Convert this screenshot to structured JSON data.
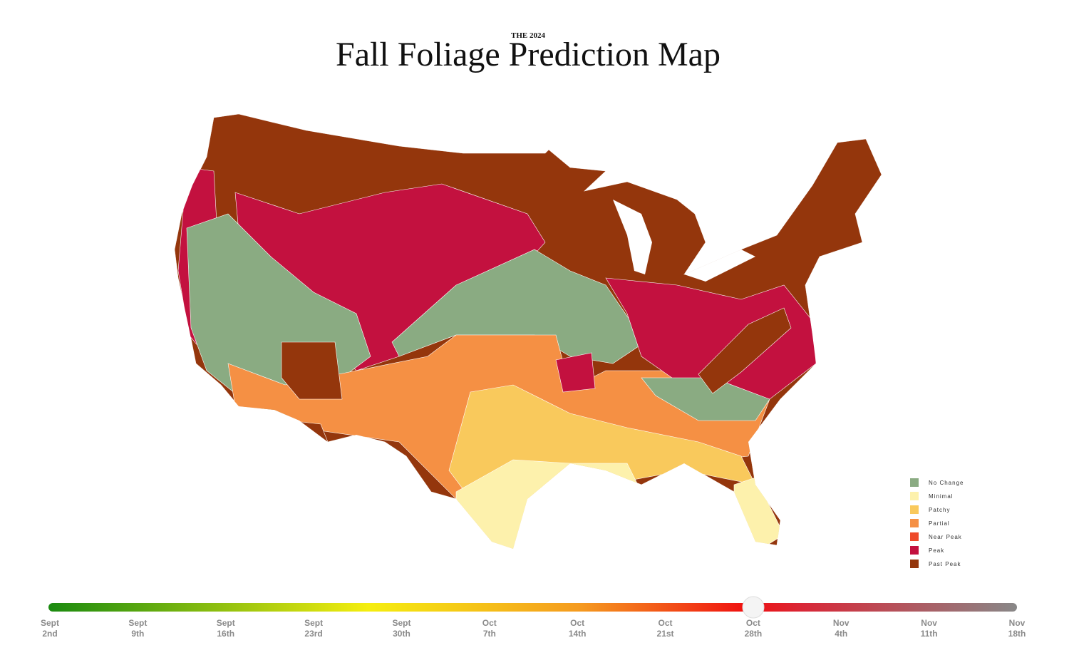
{
  "header": {
    "kicker": "THE 2024",
    "title": "Fall Foliage Prediction Map"
  },
  "legend": [
    {
      "label": "No Change",
      "color": "#8aab82"
    },
    {
      "label": "Minimal",
      "color": "#fdf1ac"
    },
    {
      "label": "Patchy",
      "color": "#f9c95c"
    },
    {
      "label": "Partial",
      "color": "#f59044"
    },
    {
      "label": "Near Peak",
      "color": "#ee4a2a"
    },
    {
      "label": "Peak",
      "color": "#c3113f"
    },
    {
      "label": "Past Peak",
      "color": "#94360c"
    }
  ],
  "timeline": {
    "ticks": [
      {
        "month": "Sept",
        "day": "2nd"
      },
      {
        "month": "Sept",
        "day": "9th"
      },
      {
        "month": "Sept",
        "day": "16th"
      },
      {
        "month": "Sept",
        "day": "23rd"
      },
      {
        "month": "Sept",
        "day": "30th"
      },
      {
        "month": "Oct",
        "day": "7th"
      },
      {
        "month": "Oct",
        "day": "14th"
      },
      {
        "month": "Oct",
        "day": "21st"
      },
      {
        "month": "Oct",
        "day": "28th"
      },
      {
        "month": "Nov",
        "day": "4th"
      },
      {
        "month": "Nov",
        "day": "11th"
      },
      {
        "month": "Nov",
        "day": "18th"
      }
    ]
  }
}
